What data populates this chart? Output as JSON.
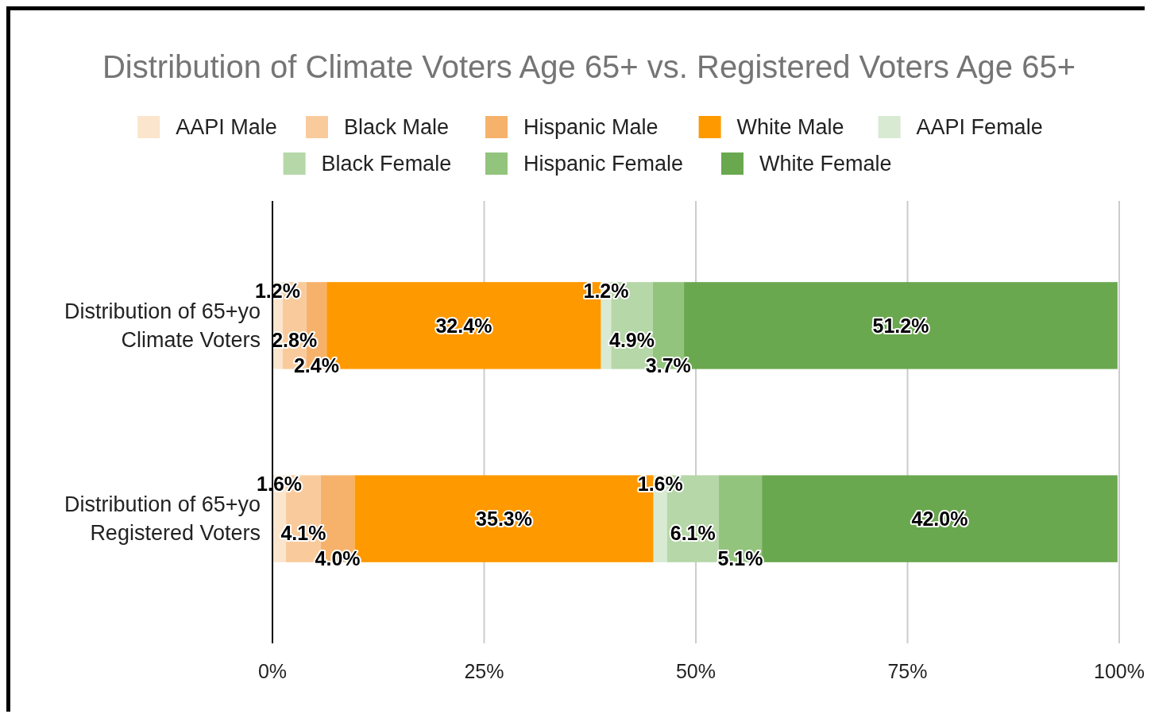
{
  "chart_data": {
    "type": "bar",
    "title": "Distribution of Climate Voters Age 65+ vs. Registered Voters Age 65+",
    "orientation": "horizontal",
    "stacked": true,
    "categories": [
      "Distribution of 65+yo Climate Voters",
      "Distribution of 65+yo Registered Voters"
    ],
    "series": [
      {
        "name": "AAPI Male",
        "color": "#fce5cd",
        "values": [
          1.2,
          1.6
        ],
        "value_labels": [
          "1.2%",
          "1.6%"
        ]
      },
      {
        "name": "Black Male",
        "color": "#f9cb9c",
        "values": [
          2.8,
          4.1
        ],
        "value_labels": [
          "2.8%",
          "4.1%"
        ]
      },
      {
        "name": "Hispanic Male",
        "color": "#f6b26b",
        "values": [
          2.4,
          4.0
        ],
        "value_labels": [
          "2.4%",
          "4.0%"
        ]
      },
      {
        "name": "White Male",
        "color": "#ff9900",
        "values": [
          32.4,
          35.3
        ],
        "value_labels": [
          "32.4%",
          "35.3%"
        ]
      },
      {
        "name": "AAPI Female",
        "color": "#d9ead3",
        "values": [
          1.2,
          1.6
        ],
        "value_labels": [
          "1.2%",
          "1.6%"
        ]
      },
      {
        "name": "Black Female",
        "color": "#b6d7a8",
        "values": [
          4.9,
          6.1
        ],
        "value_labels": [
          "4.9%",
          "6.1%"
        ]
      },
      {
        "name": "Hispanic Female",
        "color": "#93c47d",
        "values": [
          3.7,
          5.1
        ],
        "value_labels": [
          "3.7%",
          "5.1%"
        ]
      },
      {
        "name": "White Female",
        "color": "#6aa84f",
        "values": [
          51.2,
          42.0
        ],
        "value_labels": [
          "51.2%",
          "42.0%"
        ]
      }
    ],
    "xlim": [
      0,
      100
    ],
    "xticks": [
      {
        "value": 0,
        "label": "0%"
      },
      {
        "value": 25,
        "label": "25%"
      },
      {
        "value": 50,
        "label": "50%"
      },
      {
        "value": 75,
        "label": "75%"
      },
      {
        "value": 100,
        "label": "100%"
      }
    ],
    "grid": "x",
    "legend": "top"
  }
}
